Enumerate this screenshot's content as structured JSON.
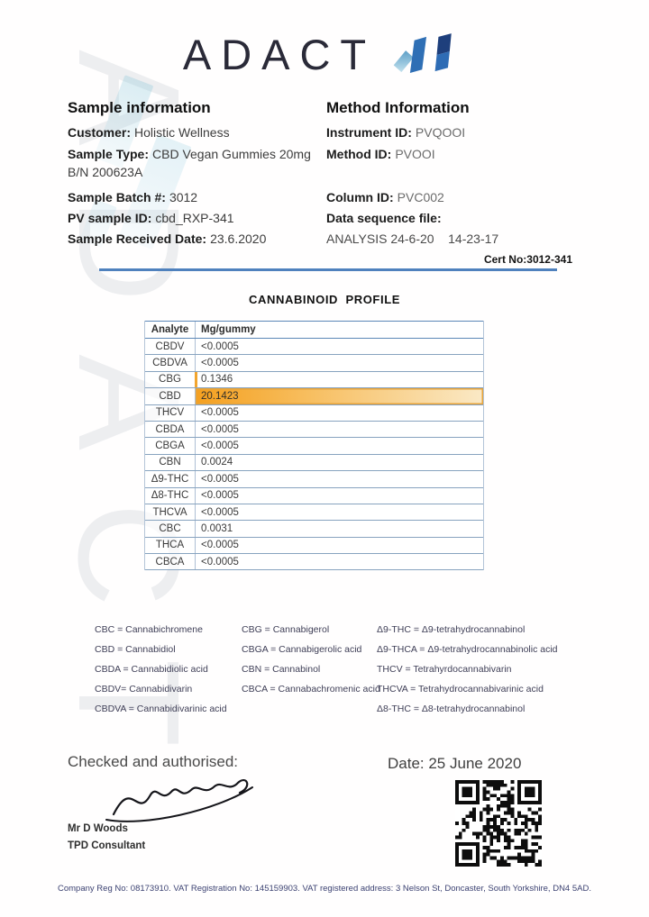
{
  "logo": {
    "text": "ADACT"
  },
  "watermark": {
    "text": "ADACT"
  },
  "colors": {
    "accent_blue": "#4f81bd",
    "logo_light": "#8cc3de",
    "logo_mid": "#2f6fb5",
    "logo_dark": "#1e3f7c",
    "highlight_orange": "#f5a01f",
    "highlight_cream": "#fae9c6"
  },
  "sample_info": {
    "heading": "Sample information",
    "customer": {
      "label": "Customer:",
      "value": "Holistic Wellness"
    },
    "sample_type": {
      "label": "Sample Type:",
      "value": "CBD Vegan Gummies 20mg B/N 200623A"
    },
    "batch": {
      "label": "Sample Batch #:",
      "value": "3012"
    },
    "pv_id": {
      "label": "PV sample ID:",
      "value": "cbd_RXP-341"
    },
    "received": {
      "label": "Sample Received Date:",
      "value": "23.6.2020"
    }
  },
  "method_info": {
    "heading": "Method Information",
    "instrument": {
      "label": "Instrument ID:",
      "value": "PVQOOI"
    },
    "method": {
      "label": "Method ID:",
      "value": "PVOOI"
    },
    "column": {
      "label": "Column ID:",
      "value": "PVC002"
    },
    "data_seq": {
      "label": "Data sequence file:",
      "value": ""
    },
    "analysis": "ANALYSIS 24-6-20    14-23-17"
  },
  "cert": {
    "label": "Cert No:3012-341"
  },
  "profile_table": {
    "title": "CANNABINOID  PROFILE",
    "columns": [
      "Analyte",
      "Mg/gummy"
    ],
    "rows": [
      {
        "analyte": "CBDV",
        "value": "<0.0005"
      },
      {
        "analyte": "CBDVA",
        "value": "<0.0005"
      },
      {
        "analyte": "CBG",
        "value": "0.1346",
        "marker": true
      },
      {
        "analyte": "CBD",
        "value": "20.1423",
        "highlight": true
      },
      {
        "analyte": "THCV",
        "value": "<0.0005"
      },
      {
        "analyte": "CBDA",
        "value": "<0.0005"
      },
      {
        "analyte": "CBGA",
        "value": "<0.0005"
      },
      {
        "analyte": "CBN",
        "value": "0.0024"
      },
      {
        "analyte": "Δ9-THC",
        "value": "<0.0005"
      },
      {
        "analyte": "Δ8-THC",
        "value": "<0.0005"
      },
      {
        "analyte": "THCVA",
        "value": "<0.0005"
      },
      {
        "analyte": "CBC",
        "value": "0.0031"
      },
      {
        "analyte": "THCA",
        "value": "<0.0005"
      },
      {
        "analyte": "CBCA",
        "value": "<0.0005"
      }
    ]
  },
  "legend": {
    "columns": [
      [
        "CBC = Cannabichromene",
        "CBD = Cannabidiol",
        "CBDA = Cannabidiolic acid",
        "CBDV= Cannabidivarin",
        "CBDVA = Cannabidivarinic acid"
      ],
      [
        "CBG = Cannabigerol",
        "CBGA = Cannabigerolic acid",
        "CBN = Cannabinol",
        "CBCA = Cannabachromenic acid"
      ],
      [
        "Δ9-THC = Δ9-tetrahydrocannabinol",
        "Δ9-THCA  = Δ9-tetrahydrocannabinolic acid",
        "THCV = Tetrahyrdocannabivarin",
        "THCVA = Tetrahydrocannabivarinic acid",
        "Δ8-THC = Δ8-tetrahydrocannabinol"
      ]
    ]
  },
  "signoff": {
    "checked_label": "Checked and authorised:",
    "name": "Mr D Woods",
    "role": "TPD Consultant",
    "date": "Date: 25 June 2020"
  },
  "footer": {
    "text": "Company Reg No: 08173910. VAT Registration No: 145159903. VAT registered address: 3 Nelson St, Doncaster, South Yorkshire, DN4 5AD."
  }
}
